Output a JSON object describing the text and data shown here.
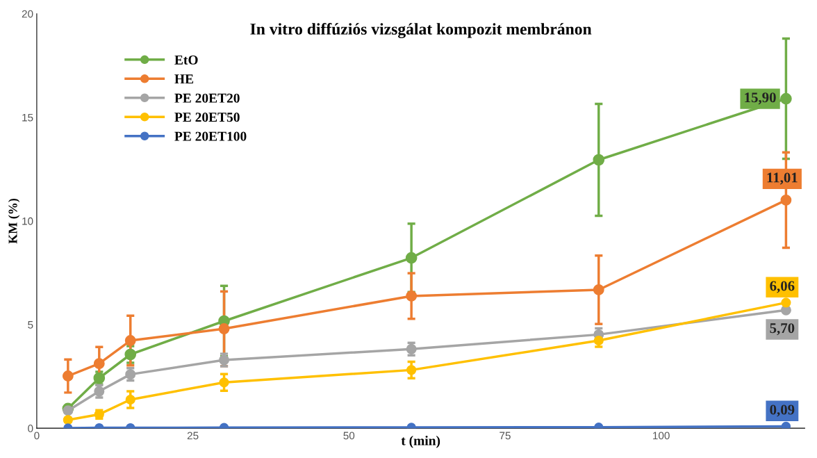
{
  "chart_data": {
    "type": "line",
    "title": "In vitro diffúziós vizsgálat kompozit membránon",
    "xlabel": "t (min)",
    "ylabel": "KM (%)",
    "x": [
      5,
      10,
      15,
      30,
      60,
      90,
      120
    ],
    "xlim": [
      0,
      123
    ],
    "xticks": [
      0,
      25,
      50,
      75,
      100
    ],
    "ylim": [
      0,
      20
    ],
    "yticks": [
      0,
      5,
      10,
      15,
      20
    ],
    "grid": false,
    "legend": "top left",
    "marker": "circle",
    "line_style": "solid",
    "series": [
      {
        "name": "EtO",
        "color": "#70ad47",
        "values": [
          0.95,
          2.42,
          3.56,
          5.17,
          8.22,
          12.95,
          15.9
        ],
        "errors": [
          0.1,
          0.3,
          0.4,
          1.7,
          1.65,
          2.7,
          2.9
        ],
        "value_labels": [
          null,
          null,
          null,
          null,
          null,
          null,
          "15,90"
        ]
      },
      {
        "name": "HE",
        "color": "#ed7d31",
        "values": [
          2.52,
          3.12,
          4.23,
          4.8,
          6.38,
          6.68,
          11.01
        ],
        "errors": [
          0.8,
          0.8,
          1.2,
          1.8,
          1.1,
          1.65,
          2.3
        ],
        "value_labels": [
          null,
          null,
          null,
          null,
          null,
          null,
          "11,01"
        ]
      },
      {
        "name": "PE 20ET20",
        "color": "#a5a5a5",
        "values": [
          0.85,
          1.78,
          2.6,
          3.29,
          3.82,
          4.52,
          5.7
        ],
        "errors": [
          0.1,
          0.3,
          0.3,
          0.3,
          0.3,
          0.3,
          null
        ],
        "value_labels": [
          null,
          null,
          null,
          null,
          null,
          null,
          "5,70"
        ]
      },
      {
        "name": "PE 20ET50",
        "color": "#ffc000",
        "values": [
          0.4,
          0.67,
          1.38,
          2.21,
          2.81,
          4.23,
          6.06
        ],
        "errors": [
          0.1,
          0.2,
          0.4,
          0.4,
          0.4,
          0.3,
          null
        ],
        "value_labels": [
          null,
          null,
          null,
          null,
          null,
          null,
          "6,06"
        ]
      },
      {
        "name": "PE 20ET100",
        "color": "#4472c4",
        "values": [
          0.01,
          0.02,
          0.02,
          0.03,
          0.04,
          0.05,
          0.09
        ],
        "value_labels": [
          null,
          null,
          null,
          null,
          null,
          null,
          "0,09"
        ]
      }
    ]
  }
}
